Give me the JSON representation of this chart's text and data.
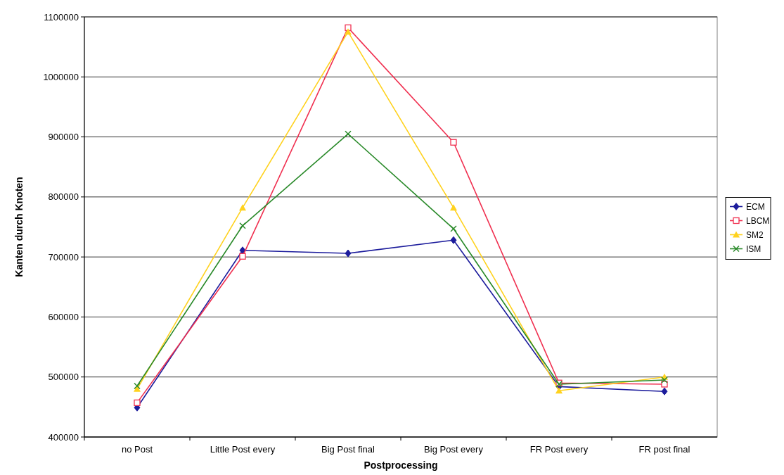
{
  "chart_data": {
    "type": "line",
    "xlabel": "Postprocessing",
    "ylabel": "Kanten durch Knoten",
    "categories": [
      "no Post",
      "Little Post every",
      "Big Post final",
      "Big Post every",
      "FR Post every",
      "FR post final"
    ],
    "ylim": [
      400000,
      1100000
    ],
    "yticks": [
      400000,
      500000,
      600000,
      700000,
      800000,
      900000,
      1000000,
      1100000
    ],
    "grid": "y",
    "legend": "right",
    "series": [
      {
        "name": "ECM",
        "color": "#1c1c9c",
        "marker": "diamond",
        "values": [
          449000,
          711000,
          706000,
          728000,
          484000,
          476000
        ]
      },
      {
        "name": "LBCM",
        "color": "#f03050",
        "marker": "square",
        "values": [
          457000,
          701000,
          1082000,
          891000,
          490000,
          488000
        ]
      },
      {
        "name": "SM2",
        "color": "#ffd21e",
        "marker": "triangle",
        "values": [
          480000,
          782000,
          1075000,
          782000,
          477000,
          500000
        ]
      },
      {
        "name": "ISM",
        "color": "#2a8a2a",
        "marker": "cross",
        "values": [
          485000,
          752000,
          905000,
          747000,
          488000,
          495000
        ]
      }
    ]
  }
}
